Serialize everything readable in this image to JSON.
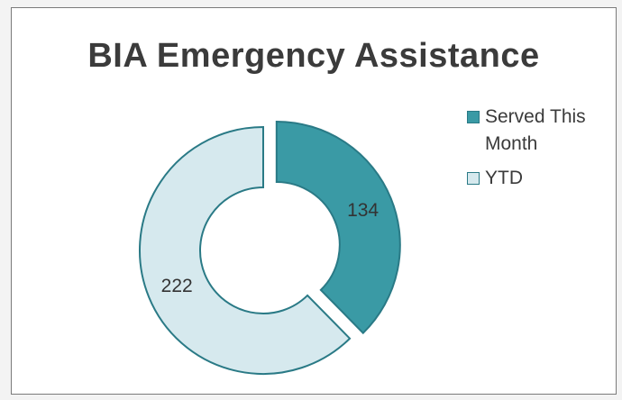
{
  "chart_data": {
    "type": "pie",
    "style": "doughnut",
    "title": "BIA Emergency Assistance",
    "categories": [
      "Served This Month",
      "YTD"
    ],
    "values": [
      134,
      222
    ],
    "colors": [
      "#3a9aa5",
      "#d6e9ee"
    ],
    "stroke_color": "#2a7a86",
    "first_slice_exploded": true,
    "legend_position": "right"
  }
}
